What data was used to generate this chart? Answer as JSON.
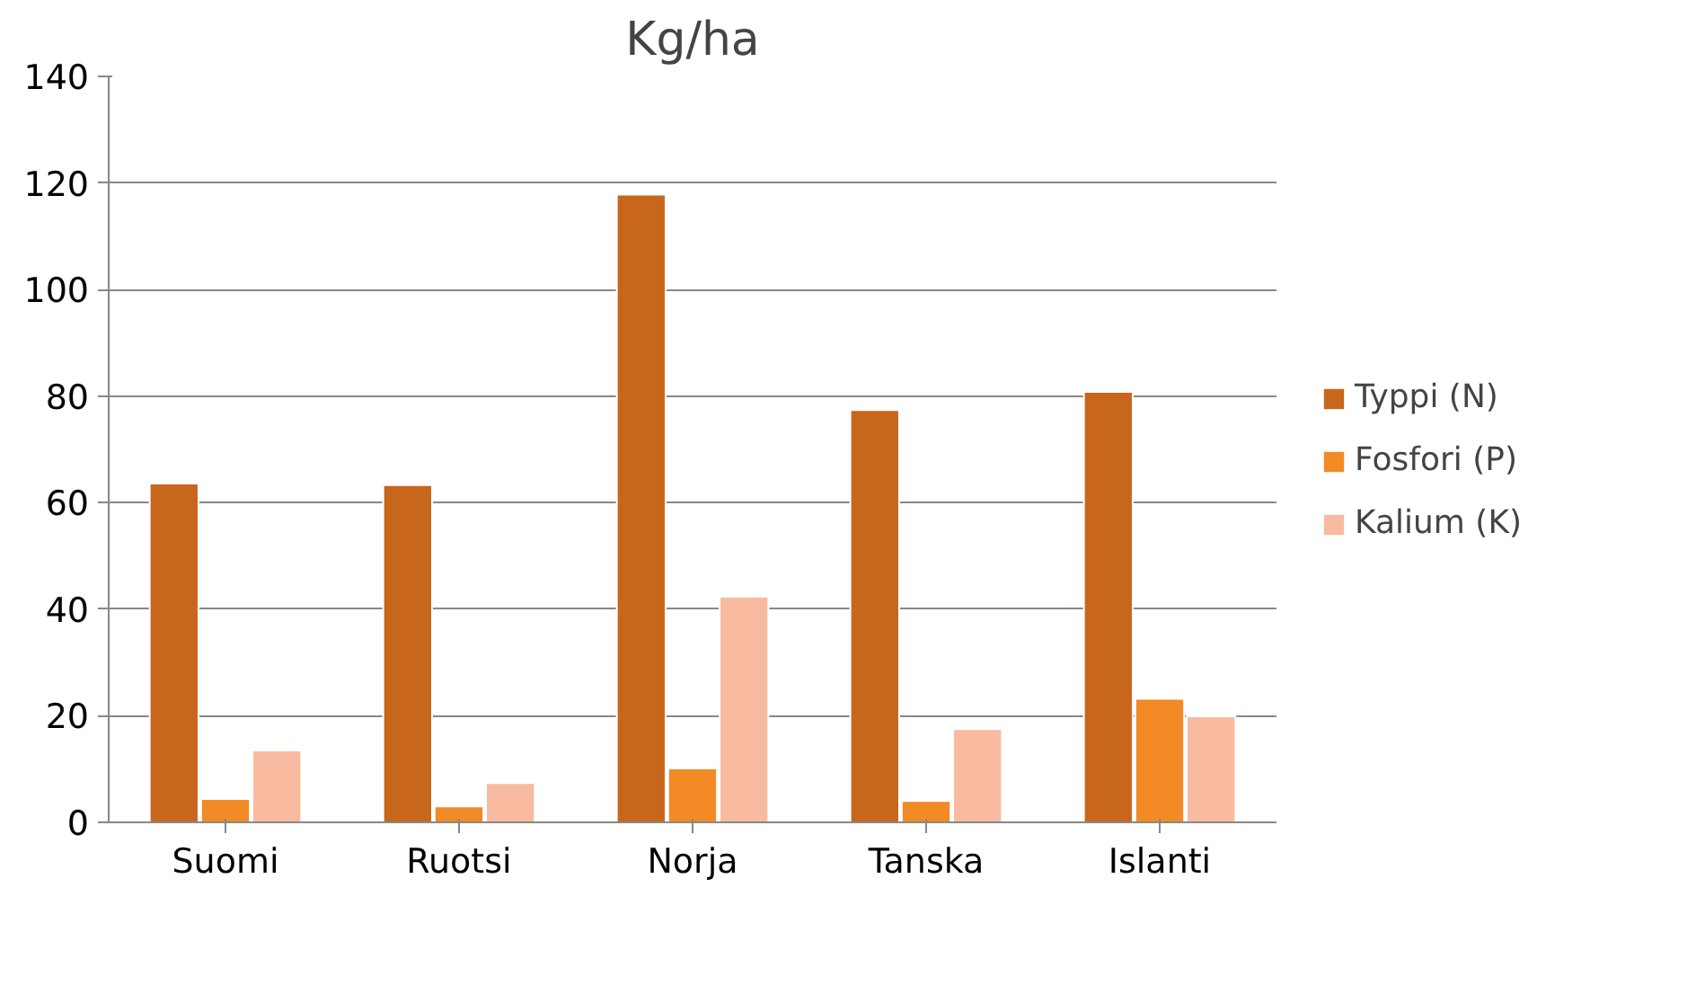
{
  "chart_data": {
    "type": "bar",
    "title": "Kg/ha",
    "categories": [
      "Suomi",
      "Ruotsi",
      "Norja",
      "Tanska",
      "Islanti"
    ],
    "series": [
      {
        "name": "Typpi (N)",
        "color": "#c8661c",
        "values": [
          63.6,
          63.3,
          117.8,
          77.4,
          80.8
        ]
      },
      {
        "name": "Fosfori (P)",
        "color": "#f28a26",
        "values": [
          4.4,
          3,
          10.1,
          4,
          23.2
        ]
      },
      {
        "name": "Kalium (K)",
        "color": "#f8bba0",
        "values": [
          13.5,
          7.4,
          42.4,
          17.5,
          19.9
        ]
      }
    ],
    "ylim": [
      0,
      140
    ],
    "yticks": [
      0,
      20,
      40,
      60,
      80,
      100,
      120,
      140
    ],
    "grid": "y",
    "legend": "right"
  }
}
